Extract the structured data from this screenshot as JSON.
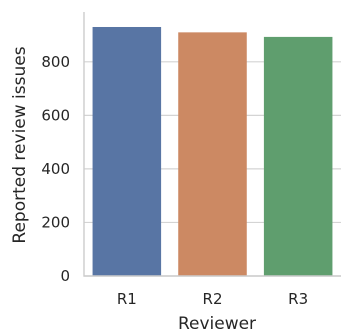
{
  "chart_data": {
    "type": "bar",
    "categories": [
      "R1",
      "R2",
      "R3"
    ],
    "values": [
      930,
      910,
      893
    ],
    "colors": [
      "#5875a4",
      "#cc8963",
      "#5f9e6e"
    ],
    "title": "",
    "xlabel": "Reviewer",
    "ylabel": "Reported review issues",
    "ylim": [
      0,
      986
    ],
    "yticks": [
      0,
      200,
      400,
      600,
      800
    ],
    "grid": "horizontal",
    "legend": "none"
  }
}
